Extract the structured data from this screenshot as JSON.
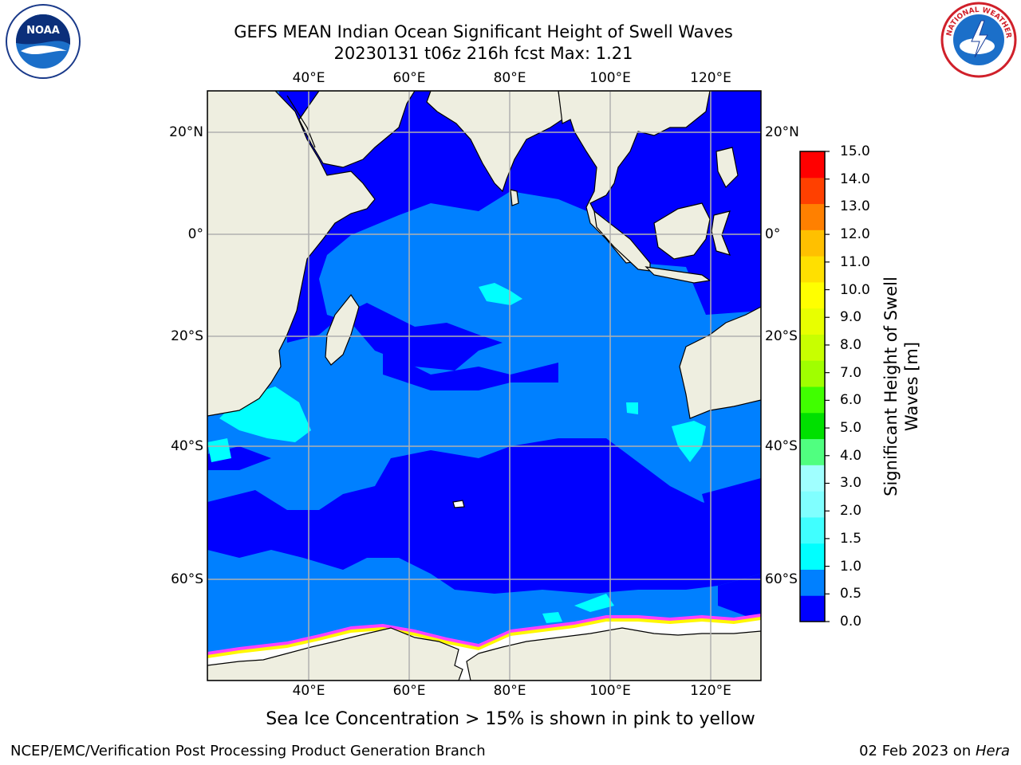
{
  "title": "GEFS MEAN Indian Ocean Significant Height of Swell Waves",
  "subtitle": "20230131 t06z 216h fcst   Max: 1.21",
  "logos": {
    "left": "NOAA",
    "right": "NATIONAL WEATHER SERVICE"
  },
  "map": {
    "lon_labels": [
      "40°E",
      "60°E",
      "80°E",
      "100°E",
      "120°E"
    ],
    "lat_labels_left": [
      "20°N",
      "0°",
      "20°S",
      "40°S",
      "60°S"
    ],
    "lat_labels_right": [
      "20°N",
      "0°",
      "20°S",
      "40°S",
      "60°S"
    ],
    "lon_range": [
      20,
      130
    ],
    "lat_range": [
      -75,
      28
    ],
    "colors": {
      "ocean_low": "#0000ff",
      "ocean_mid": "#0080ff",
      "cyan": "#00ffff",
      "land": "#eeeee0",
      "grid": "#b0b0b0"
    }
  },
  "colorbar": {
    "label": "Significant Height of Swell Waves [m]",
    "ticks": [
      "15.0",
      "14.0",
      "13.0",
      "12.0",
      "11.0",
      "10.0",
      "9.0",
      "8.0",
      "7.0",
      "6.0",
      "5.0",
      "4.0",
      "3.0",
      "2.0",
      "1.5",
      "1.0",
      "0.5",
      "0.0"
    ],
    "colors": [
      "#0000ff",
      "#0080ff",
      "#00ffff",
      "#40ffff",
      "#80ffff",
      "#a0ffff",
      "#50ff80",
      "#00e000",
      "#40ff00",
      "#a0ff00",
      "#c8ff00",
      "#e8ff00",
      "#ffff00",
      "#ffe000",
      "#ffc000",
      "#ff8000",
      "#ff4000",
      "#ff0000"
    ]
  },
  "note": "Sea Ice Concentration > 15% is shown in pink to yellow",
  "footer": {
    "left": "NCEP/EMC/Verification Post Processing Product Generation Branch",
    "date": "02 Feb 2023 on ",
    "host": "Hera"
  }
}
